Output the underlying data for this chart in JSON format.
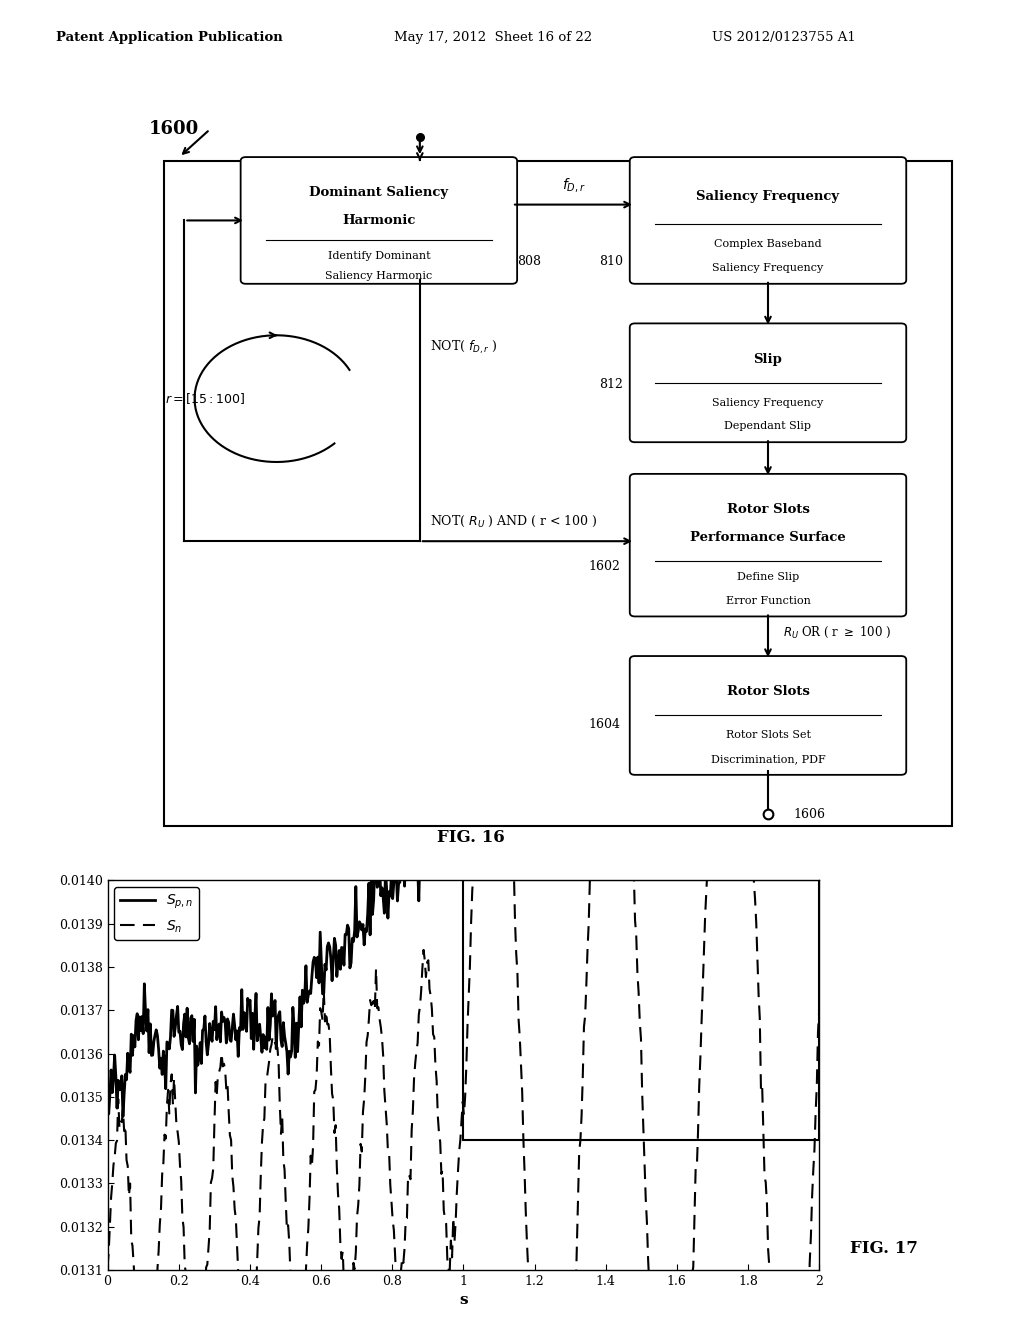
{
  "header_left": "Patent Application Publication",
  "header_mid": "May 17, 2012  Sheet 16 of 22",
  "header_right": "US 2012/0123755 A1",
  "fig16_label": "FIG. 16",
  "fig17_label": "FIG. 17",
  "fig_num": "1600",
  "xlabel_plot": "s",
  "ylim": [
    0.0131,
    0.014
  ],
  "xlim": [
    0,
    2
  ],
  "yticks": [
    0.0131,
    0.0132,
    0.0133,
    0.0134,
    0.0135,
    0.0136,
    0.0137,
    0.0138,
    0.0139,
    0.014
  ],
  "xticks": [
    0,
    0.2,
    0.4,
    0.6,
    0.8,
    1.0,
    1.2,
    1.4,
    1.6,
    1.8,
    2.0
  ],
  "seed": 42,
  "background_color": "#ffffff"
}
